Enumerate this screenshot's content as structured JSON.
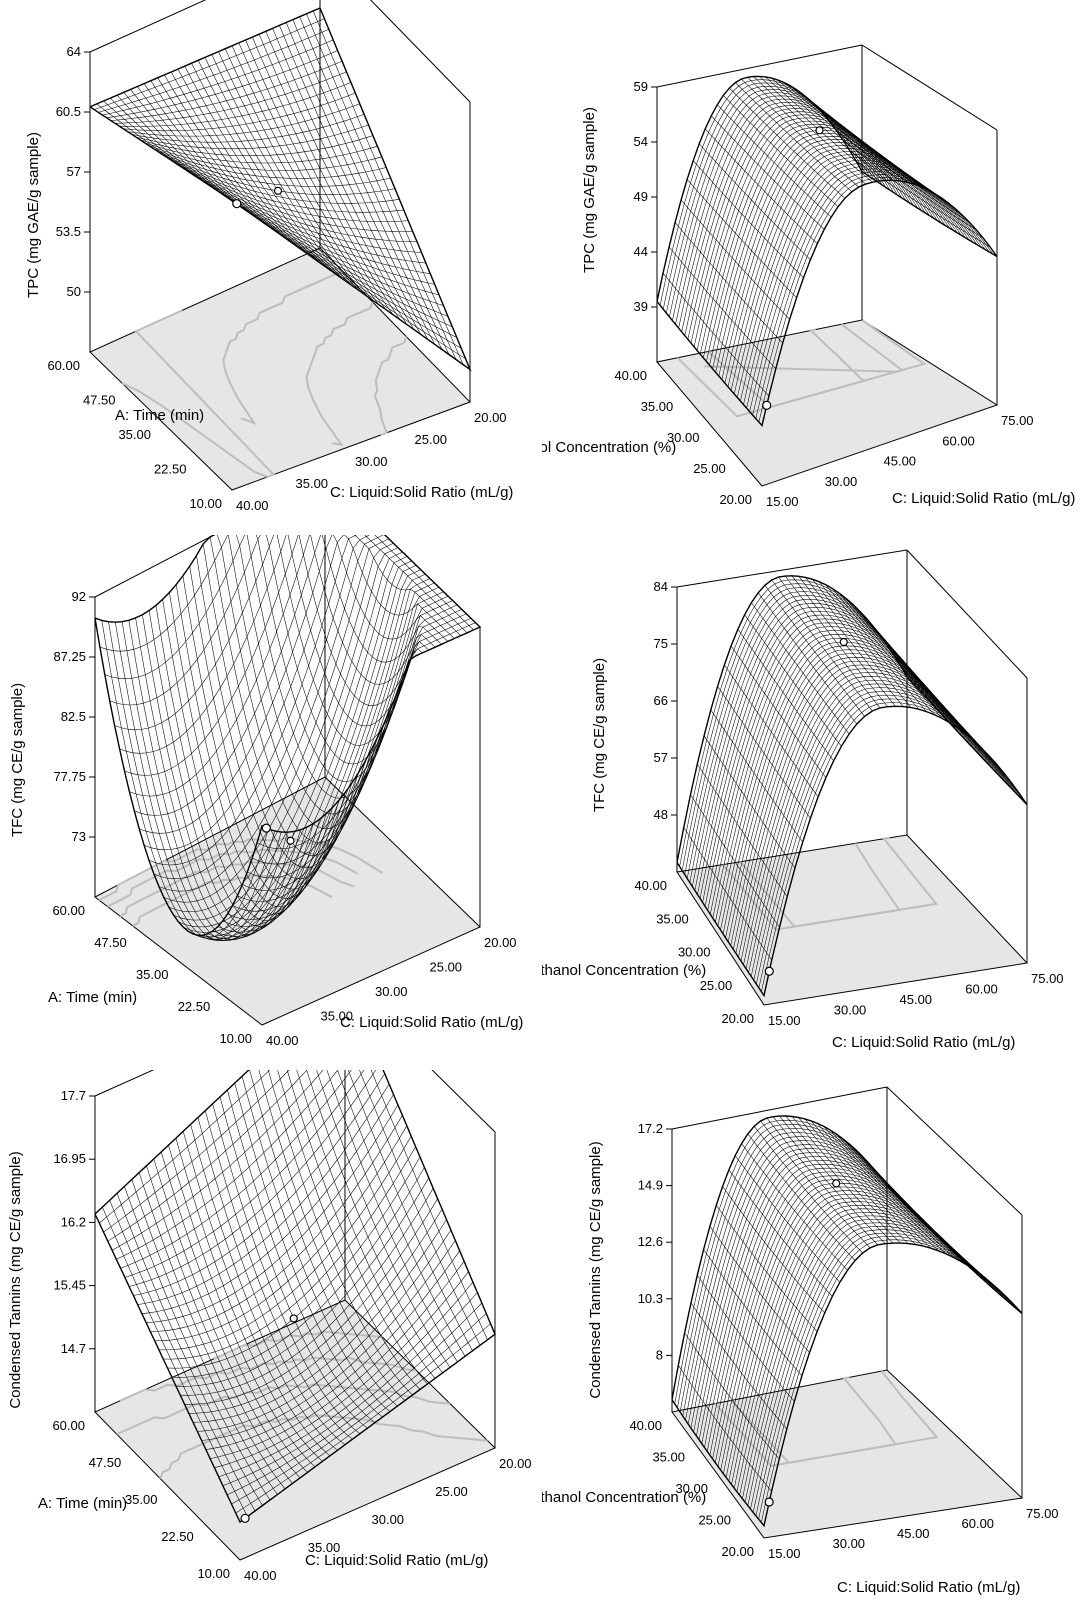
{
  "chart_data": [
    {
      "type": "surface",
      "x_axis": {
        "label": "A: Time (min)",
        "ticks": [
          "10.00",
          "22.50",
          "35.00",
          "47.50",
          "60.00"
        ]
      },
      "y_axis": {
        "label": "C: Liquid:Solid Ratio (mL/g)",
        "ticks": [
          "40.00",
          "35.00",
          "30.00",
          "25.00",
          "20.00"
        ]
      },
      "z_axis": {
        "label": "TPC (mg GAE/g sample)",
        "ticks": [
          "50",
          "53.5",
          "57",
          "60.5",
          "64"
        ]
      },
      "zlim": [
        46.5,
        64
      ],
      "corners": {
        "x10_y40": 63.4,
        "x10_y20": 48.4,
        "x60_y40": 60.8,
        "x60_y20": 60.5
      },
      "center": 57.0
    },
    {
      "type": "surface",
      "x_axis": {
        "label": "B: Ethanol Concentration (%)",
        "ticks": [
          "15.00",
          "30.00",
          "45.00",
          "60.00",
          "75.00"
        ]
      },
      "y_axis": {
        "label": "C: Liquid:Solid Ratio (mL/g)",
        "ticks": [
          "20.00",
          "25.00",
          "30.00",
          "35.00",
          "40.00"
        ]
      },
      "z_axis": {
        "label": "TPC (mg GAE/g sample)",
        "ticks": [
          "39",
          "44",
          "49",
          "54",
          "59"
        ]
      },
      "zlim": [
        34,
        59
      ],
      "ridge": {
        "peak_x": 41,
        "peak_z": 58.2,
        "left_z": 39.5,
        "right_z": 47.5
      }
    },
    {
      "type": "surface",
      "x_axis": {
        "label": "A: Time (min)",
        "ticks": [
          "10.00",
          "22.50",
          "35.00",
          "47.50",
          "60.00"
        ]
      },
      "y_axis": {
        "label": "C: Liquid:Solid Ratio (mL/g)",
        "ticks": [
          "40.00",
          "35.00",
          "30.00",
          "25.00",
          "20.00"
        ]
      },
      "z_axis": {
        "label": "TFC (mg CE/g sample)",
        "ticks": [
          "73",
          "77.75",
          "82.5",
          "87.25",
          "92"
        ]
      },
      "zlim": [
        68.25,
        92
      ],
      "bowl": {
        "min_z": 69.5,
        "corner_z": 92.0
      }
    },
    {
      "type": "surface",
      "x_axis": {
        "label": "B: Ethanol Concentration (%)",
        "ticks": [
          "15.00",
          "30.00",
          "45.00",
          "60.00",
          "75.00"
        ]
      },
      "y_axis": {
        "label": "C: Liquid:Solid Ratio (mL/g)",
        "ticks": [
          "20.00",
          "25.00",
          "30.00",
          "35.00",
          "40.00"
        ]
      },
      "z_axis": {
        "label": "TFC (mg CE/g sample)",
        "ticks": [
          "48",
          "57",
          "66",
          "75",
          "84"
        ]
      },
      "zlim": [
        39,
        84
      ],
      "ridge": {
        "peak_x": 42,
        "peak_z": 83.0,
        "left_z": 40.5,
        "right_z": 64.0
      }
    },
    {
      "type": "surface",
      "x_axis": {
        "label": "A: Time (min)",
        "ticks": [
          "10.00",
          "22.50",
          "35.00",
          "47.50",
          "60.00"
        ]
      },
      "y_axis": {
        "label": "C: Liquid:Solid Ratio (mL/g)",
        "ticks": [
          "40.00",
          "35.00",
          "30.00",
          "25.00",
          "20.00"
        ]
      },
      "z_axis": {
        "label": "Condensed Tannins (mg CE/g sample)",
        "ticks": [
          "14.7",
          "15.45",
          "16.2",
          "16.95",
          "17.7"
        ]
      },
      "zlim": [
        13.95,
        17.7
      ],
      "corners": {
        "x10_y40": 14.4,
        "x10_y20": 15.3,
        "x60_y40": 16.3,
        "x60_y20": 17.75
      },
      "center": 15.2
    },
    {
      "type": "surface",
      "x_axis": {
        "label": "B: Ethanol Concentration (%)",
        "ticks": [
          "15.00",
          "30.00",
          "45.00",
          "60.00",
          "75.00"
        ]
      },
      "y_axis": {
        "label": "C: Liquid:Solid Ratio (mL/g)",
        "ticks": [
          "20.00",
          "25.00",
          "30.00",
          "35.00",
          "40.00"
        ]
      },
      "z_axis": {
        "label": "Condensed Tannins (mg CE/g sample)",
        "ticks": [
          "8",
          "10.3",
          "12.6",
          "14.9",
          "17.2"
        ]
      },
      "zlim": [
        5.7,
        17.2
      ],
      "ridge": {
        "peak_x": 42,
        "peak_z": 16.9,
        "left_z": 6.2,
        "right_z": 13.2
      }
    }
  ]
}
